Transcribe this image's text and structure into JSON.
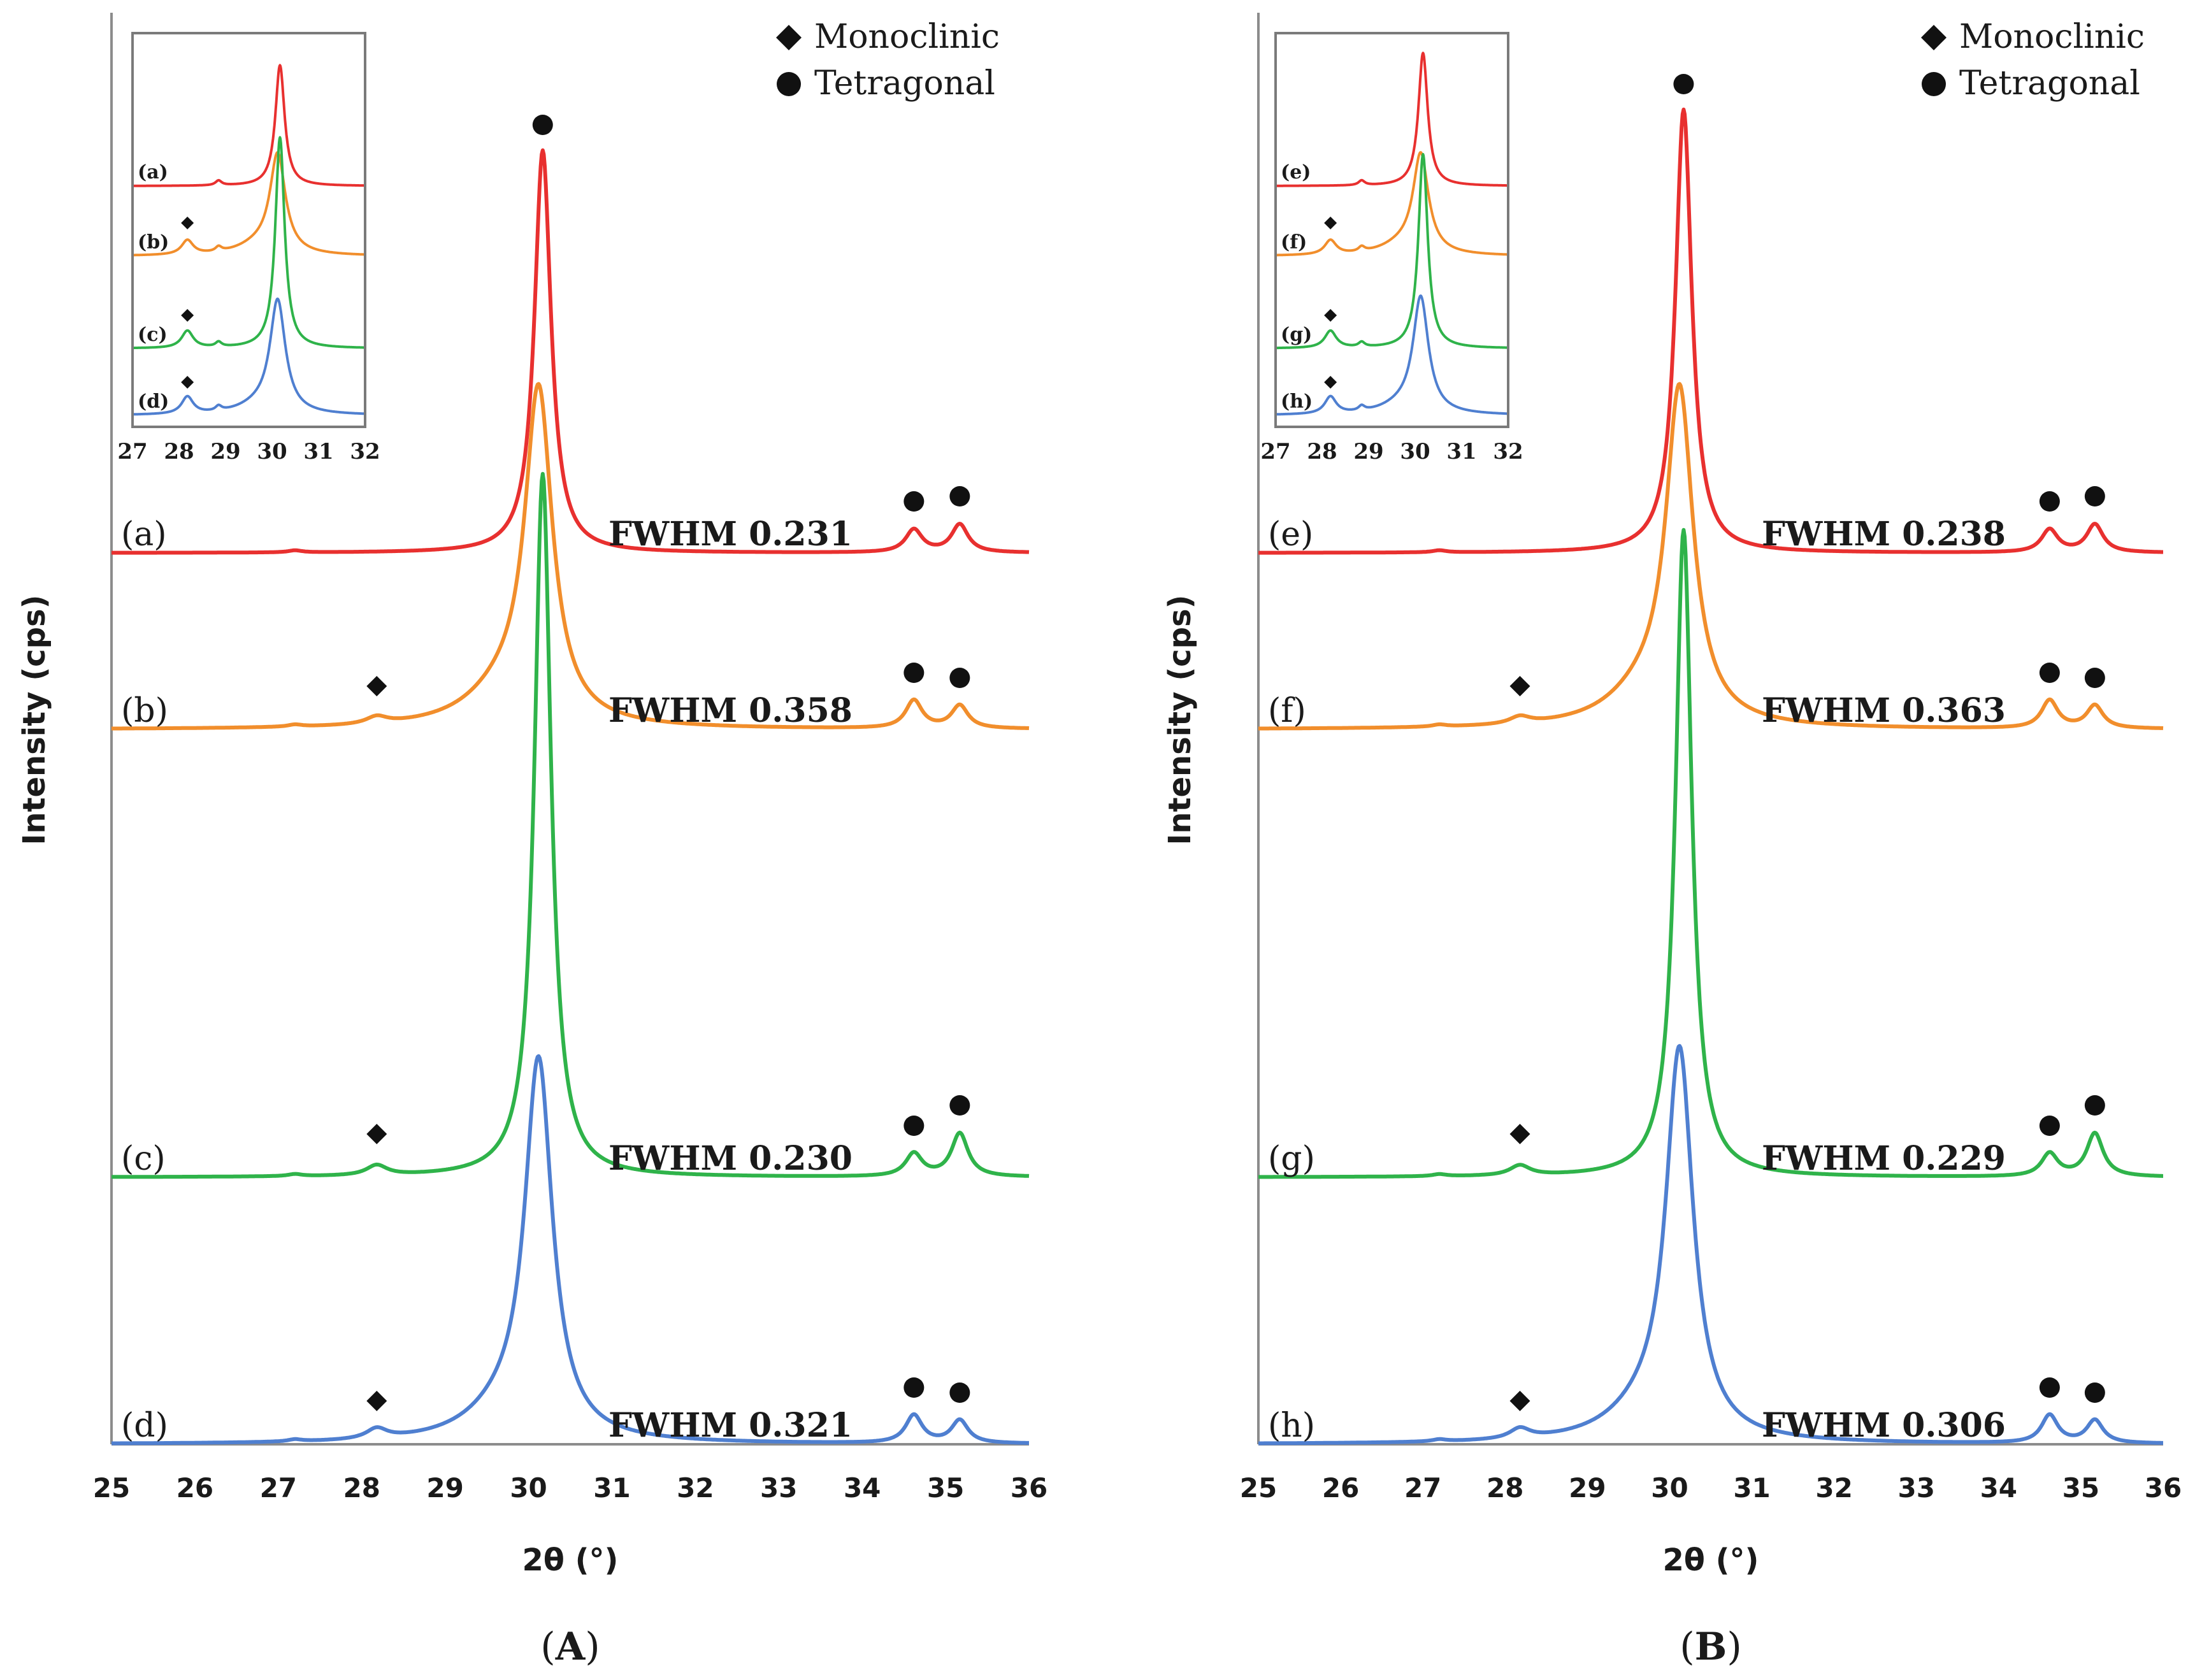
{
  "figure": {
    "colors": {
      "a": "#e8302f",
      "b": "#f18e2c",
      "c": "#2fb34a",
      "d": "#4f7fd0"
    }
  },
  "chart_data": [
    {
      "type": "line",
      "panel": "A",
      "panel_caption": {
        "open": "(",
        "letter": "A",
        "close": ")"
      },
      "xlabel": "2θ (°)",
      "ylabel": "Intensity (cps)",
      "xlim": [
        25,
        36
      ],
      "x_ticks": [
        "25",
        "26",
        "27",
        "28",
        "29",
        "30",
        "31",
        "32",
        "33",
        "34",
        "35",
        "36"
      ],
      "legend": [
        {
          "marker": "diamond",
          "label": "Monoclinic"
        },
        {
          "marker": "circle",
          "label": "Tetragonal"
        }
      ],
      "series": [
        {
          "name": "(a)",
          "fwhm_label": "FWHM 0.231",
          "monoclinic_peak": false,
          "peak_height": 0.79,
          "shoulder": 0.0,
          "main_width": 0.12,
          "main_center": 30.17
        },
        {
          "name": "(b)",
          "fwhm_label": "FWHM 0.358",
          "monoclinic_peak": true,
          "peak_height": 0.64,
          "shoulder": 0.12,
          "main_width": 0.2,
          "main_center": 30.12
        },
        {
          "name": "(c)",
          "fwhm_label": "FWHM 0.230",
          "monoclinic_peak": true,
          "peak_height": 1.38,
          "shoulder": 0.0,
          "main_width": 0.12,
          "main_center": 30.17
        },
        {
          "name": "(d)",
          "fwhm_label": "FWHM 0.321",
          "monoclinic_peak": true,
          "peak_height": 0.73,
          "shoulder": 0.1,
          "main_width": 0.2,
          "main_center": 30.12
        }
      ],
      "inset": {
        "xlim": [
          27,
          32
        ],
        "x_ticks": [
          "27",
          "28",
          "29",
          "30",
          "31",
          "32"
        ],
        "labels": [
          "(a)",
          "(b)",
          "(c)",
          "(d)"
        ],
        "diamond_on": [
          false,
          true,
          true,
          true
        ]
      }
    },
    {
      "type": "line",
      "panel": "B",
      "panel_caption": {
        "open": "(",
        "letter": "B",
        "close": ")"
      },
      "xlabel": "2θ (°)",
      "ylabel": "Intensity (cps)",
      "xlim": [
        25,
        36
      ],
      "x_ticks": [
        "25",
        "26",
        "27",
        "28",
        "29",
        "30",
        "31",
        "32",
        "33",
        "34",
        "35",
        "36"
      ],
      "legend": [
        {
          "marker": "diamond",
          "label": "Monoclinic"
        },
        {
          "marker": "circle",
          "label": "Tetragonal"
        }
      ],
      "series": [
        {
          "name": "(e)",
          "fwhm_label": "FWHM 0.238",
          "monoclinic_peak": false,
          "peak_height": 0.87,
          "shoulder": 0.0,
          "main_width": 0.12,
          "main_center": 30.17
        },
        {
          "name": "(f)",
          "fwhm_label": "FWHM 0.363",
          "monoclinic_peak": true,
          "peak_height": 0.64,
          "shoulder": 0.12,
          "main_width": 0.2,
          "main_center": 30.12
        },
        {
          "name": "(g)",
          "fwhm_label": "FWHM 0.229",
          "monoclinic_peak": true,
          "peak_height": 1.27,
          "shoulder": 0.0,
          "main_width": 0.12,
          "main_center": 30.17
        },
        {
          "name": "(h)",
          "fwhm_label": "FWHM 0.306",
          "monoclinic_peak": true,
          "peak_height": 0.75,
          "shoulder": 0.1,
          "main_width": 0.2,
          "main_center": 30.12
        }
      ],
      "inset": {
        "xlim": [
          27,
          32
        ],
        "x_ticks": [
          "27",
          "28",
          "29",
          "30",
          "31",
          "32"
        ],
        "labels": [
          "(e)",
          "(f)",
          "(g)",
          "(h)"
        ],
        "diamond_on": [
          false,
          true,
          true,
          true
        ]
      }
    }
  ]
}
